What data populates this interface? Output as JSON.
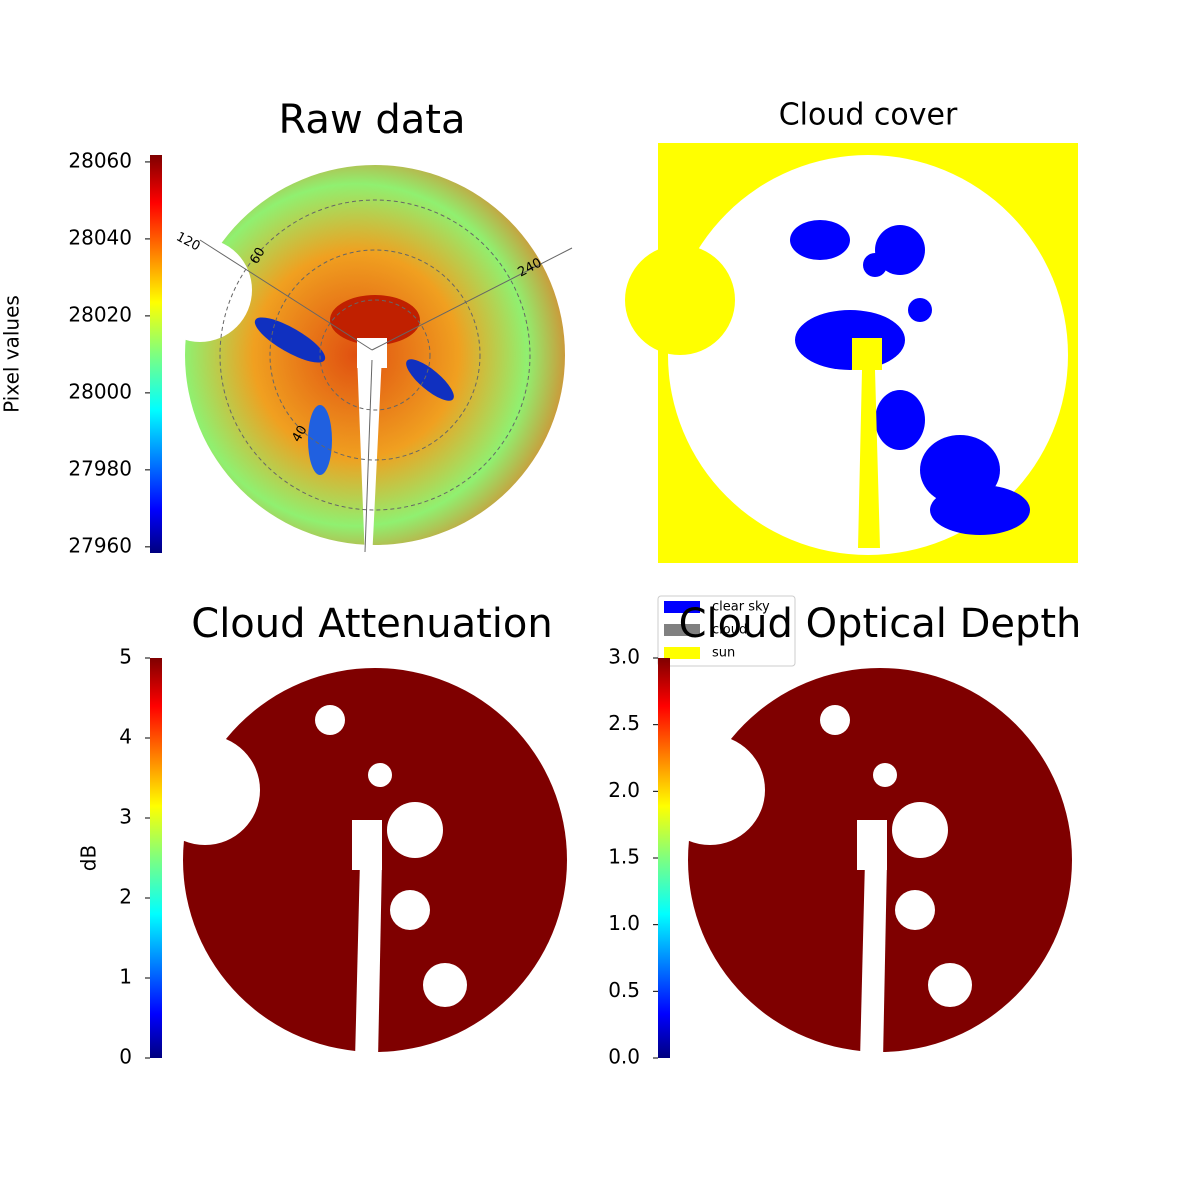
{
  "chart_data": [
    {
      "type": "image",
      "title": "Raw data",
      "annotations": [
        "120",
        "60",
        "240",
        "40"
      ],
      "colorbar": {
        "label": "Pixel values",
        "colormap": "jet",
        "lim": [
          27958.4,
          28061.8
        ],
        "ticks": [
          27960,
          27980,
          28000,
          28020,
          28040,
          28060
        ]
      }
    },
    {
      "type": "image",
      "title": "Cloud cover",
      "legend": {
        "labels": [
          "clear sky",
          "cloud",
          "sun"
        ],
        "colors": [
          "#0000ff",
          "#808080",
          "#ffff00"
        ]
      }
    },
    {
      "type": "image",
      "title": "Cloud Attenuation",
      "colorbar": {
        "label": "dB",
        "colormap": "jet",
        "lim": [
          0,
          5
        ],
        "ticks": [
          0,
          1,
          2,
          3,
          4,
          5
        ]
      }
    },
    {
      "type": "image",
      "title": "Cloud Optical Depth",
      "colorbar": {
        "colormap": "jet",
        "lim": [
          0,
          3
        ],
        "ticks": [
          {
            "value": 0,
            "label": "0.0"
          },
          {
            "value": 0.5,
            "label": "0.5"
          },
          {
            "value": 1,
            "label": "1.0"
          },
          {
            "value": 1.5,
            "label": "1.5"
          },
          {
            "value": 2,
            "label": "2.0"
          },
          {
            "value": 2.5,
            "label": "2.5"
          },
          {
            "value": 3,
            "label": "3.0"
          }
        ]
      }
    }
  ]
}
